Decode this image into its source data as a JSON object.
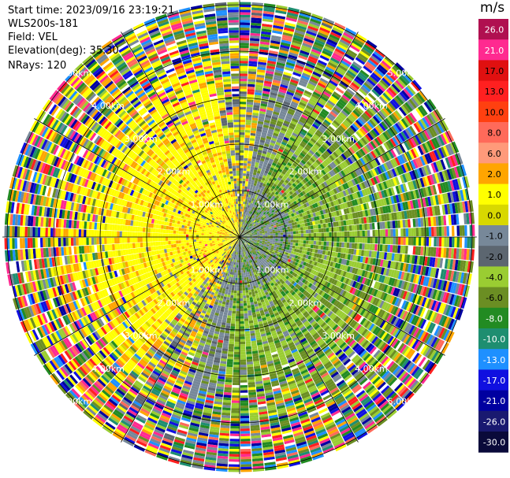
{
  "header": {
    "start_time": "Start time: 2023/09/16 23:19:21",
    "instrument": "WLS200s-181",
    "field": "Field: VEL",
    "elevation": "Elevation(deg): 35.30",
    "nrays": "NRays: 120"
  },
  "chart_data": {
    "type": "ppi",
    "field": "VEL",
    "elevation_deg": 35.3,
    "n_rays": 120,
    "range_rings_km": [
      1.0,
      2.0,
      3.0,
      4.0,
      5.0
    ],
    "ring_labels": [
      "1.00km",
      "2.00km",
      "3.00km",
      "4.00km",
      "5.00km"
    ],
    "max_range_km": 5.1,
    "colorbar": {
      "unit": "m/s",
      "tick_labels": [
        "26.0",
        "21.0",
        "17.0",
        "13.0",
        "10.0",
        "8.0",
        "6.0",
        "2.0",
        "1.0",
        "0.0",
        "-1.0",
        "-2.0",
        "-4.0",
        "-6.0",
        "-8.0",
        "-10.0",
        "-13.0",
        "-17.0",
        "-21.0",
        "-26.0",
        "-30.0"
      ],
      "colors": [
        "#b01050",
        "#ff2a90",
        "#e01010",
        "#ff2020",
        "#ff4010",
        "#ff6a5a",
        "#ff9a7a",
        "#ffa500",
        "#ffff00",
        "#d8d800",
        "#778899",
        "#5c6670",
        "#9acd32",
        "#6b8e23",
        "#228b22",
        "#1e8e70",
        "#1e90ff",
        "#1010e0",
        "#0000a0",
        "#191970",
        "#0a0a3a"
      ]
    }
  }
}
